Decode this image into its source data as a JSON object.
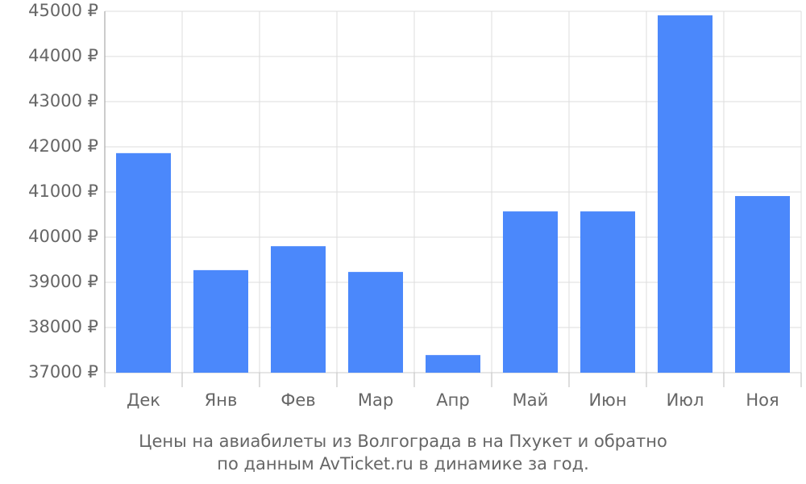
{
  "chart_data": {
    "type": "bar",
    "title": [
      "Цены на авиабилеты из Волгограда в на Пхукет и обратно",
      "по данным AvTicket.ru в динамике за год."
    ],
    "categories": [
      "Дек",
      "Янв",
      "Фев",
      "Мар",
      "Апр",
      "Май",
      "Июн",
      "Июл",
      "Ноя"
    ],
    "values": [
      41860,
      39270,
      39800,
      39230,
      37390,
      40570,
      40570,
      44910,
      40910
    ],
    "color": "#4b88fb",
    "ylim": [
      37000,
      45000
    ],
    "yticks": [
      {
        "value": 37000,
        "label": "37000 ₽"
      },
      {
        "value": 38000,
        "label": "38000 ₽"
      },
      {
        "value": 39000,
        "label": "39000 ₽"
      },
      {
        "value": 40000,
        "label": "40000 ₽"
      },
      {
        "value": 41000,
        "label": "41000 ₽"
      },
      {
        "value": 42000,
        "label": "42000 ₽"
      },
      {
        "value": 43000,
        "label": "43000 ₽"
      },
      {
        "value": 44000,
        "label": "44000 ₽"
      },
      {
        "value": 45000,
        "label": "45000 ₽"
      }
    ],
    "grid": true
  }
}
